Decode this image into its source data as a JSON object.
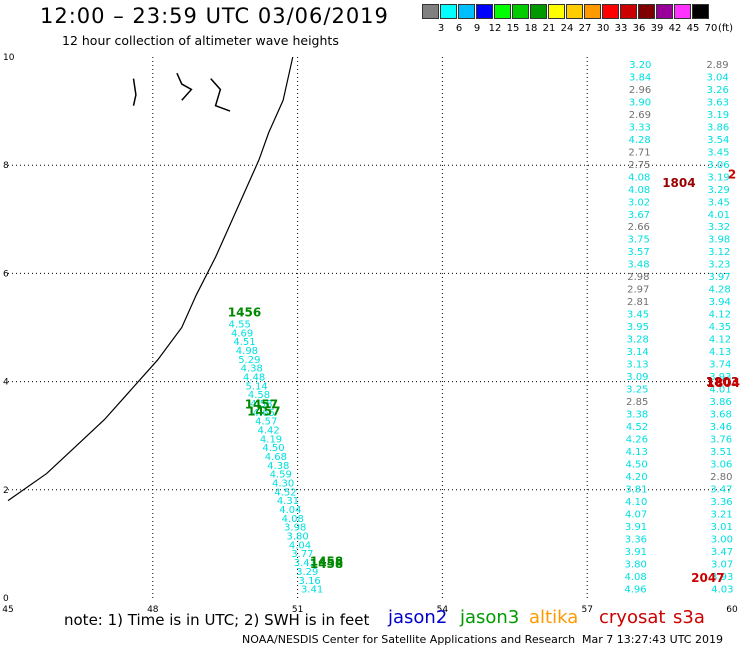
{
  "header": {
    "title": "12:00 – 23:59 UTC 03/06/2019",
    "subtitle": "12 hour collection of altimeter wave heights"
  },
  "legend": {
    "labels": [
      "3",
      "6",
      "9",
      "12",
      "15",
      "18",
      "21",
      "24",
      "27",
      "30",
      "33",
      "36",
      "39",
      "42",
      "45",
      "70"
    ],
    "unit": "(ft)",
    "colors": [
      "#808080",
      "#00ffff",
      "#00bfff",
      "#0000ff",
      "#00ff00",
      "#00cc00",
      "#009900",
      "#ffff00",
      "#ffcc00",
      "#ff9900",
      "#ff0000",
      "#cc0000",
      "#800000",
      "#990099",
      "#ff33ff",
      "#000000"
    ]
  },
  "footer": {
    "note": "note:  1) Time is in UTC;  2) SWH is in feet",
    "satellites": [
      {
        "name": "jason2",
        "color": "#0000cc"
      },
      {
        "name": "jason3",
        "color": "#009900"
      },
      {
        "name": "altika",
        "color": "#ff9900"
      },
      {
        "name": "cryosat",
        "color": "#cc0000"
      },
      {
        "name": "s3a",
        "color": "#cc0000"
      }
    ],
    "credit": "NOAA/NESDIS Center for Satellite Applications and Research",
    "timestamp": "Mar  7 13:27:43 UTC 2019"
  },
  "chart_data": {
    "type": "scatter",
    "xlim": [
      45,
      60
    ],
    "ylim": [
      0,
      10
    ],
    "x_ticks": [
      45,
      48,
      51,
      54,
      57,
      60
    ],
    "y_ticks": [
      0,
      2,
      4,
      6,
      8,
      10
    ],
    "grid": true,
    "coastline": [
      [
        50.9,
        10
      ],
      [
        50.8,
        9.6
      ],
      [
        50.7,
        9.2
      ],
      [
        50.4,
        8.6
      ],
      [
        50.2,
        8.1
      ],
      [
        49.9,
        7.5
      ],
      [
        49.6,
        6.9
      ],
      [
        49.3,
        6.3
      ],
      [
        48.9,
        5.6
      ],
      [
        48.6,
        5.0
      ],
      [
        48.1,
        4.4
      ],
      [
        47.6,
        3.9
      ],
      [
        47.0,
        3.3
      ],
      [
        46.4,
        2.8
      ],
      [
        45.8,
        2.3
      ],
      [
        45.0,
        1.8
      ]
    ],
    "islands": [
      [
        [
          47.6,
          9.6
        ],
        [
          47.65,
          9.3
        ],
        [
          47.6,
          9.1
        ]
      ],
      [
        [
          48.5,
          9.7
        ],
        [
          48.6,
          9.5
        ],
        [
          48.8,
          9.4
        ],
        [
          48.6,
          9.2
        ]
      ],
      [
        [
          49.2,
          9.6
        ],
        [
          49.4,
          9.4
        ],
        [
          49.3,
          9.1
        ],
        [
          49.6,
          9.0
        ]
      ]
    ],
    "text_color_map": {
      "g": "#707070",
      "c": "#00e0e0",
      "dg": "#008800",
      "dr": "#990000",
      "r": "#cc0000"
    },
    "track_labels": [
      {
        "lon": 49.9,
        "lat": 5.2,
        "text": "1456",
        "color": "dg"
      },
      {
        "lon": 50.25,
        "lat": 3.5,
        "text": "1457",
        "color": "dg"
      },
      {
        "lon": 50.3,
        "lat": 3.37,
        "text": "1457",
        "color": "dg"
      },
      {
        "lon": 51.6,
        "lat": 0.6,
        "text": "1458",
        "color": "dg"
      },
      {
        "lon": 51.6,
        "lat": 0.55,
        "text": "1458",
        "color": "dg"
      },
      {
        "lon": 58.9,
        "lat": 7.6,
        "text": "1804",
        "color": "dr"
      },
      {
        "lon": 60.0,
        "lat": 7.75,
        "text": "2",
        "color": "r"
      },
      {
        "lon": 59.8,
        "lat": 3.92,
        "text": "1803",
        "color": "dr"
      },
      {
        "lon": 59.82,
        "lat": 3.9,
        "text": "1804",
        "color": "r"
      },
      {
        "lon": 59.5,
        "lat": 0.3,
        "text": "2047",
        "color": "r"
      }
    ],
    "tracks": [
      {
        "lon0": 49.8,
        "lat0": 5.0,
        "lon1": 51.3,
        "lat1": 0.1,
        "color": "c",
        "values": [
          "4.55",
          "4.69",
          "4.51",
          "4.98",
          "5.29",
          "4.38",
          "4.48",
          "5.14",
          "4.58",
          "4.58",
          "4.65",
          "4.57",
          "4.42",
          "4.19",
          "4.50",
          "4.68",
          "4.38",
          "4.59",
          "4.30",
          "4.52",
          "4.31",
          "4.04",
          "4.08",
          "3.98",
          "3.80",
          "4.04",
          "3.77",
          "3.43",
          "3.29",
          "3.16",
          "3.41"
        ]
      },
      {
        "lon0": 58.1,
        "lat0": 9.8,
        "lon1": 58.0,
        "lat1": 0.1,
        "color": "c",
        "values": [
          "3.20",
          "3.84",
          "2.96",
          "3.90",
          "2.69",
          "3.33",
          "4.28",
          "2.71",
          "2.75",
          "4.08",
          "4.08",
          "3.02",
          "3.67",
          "2.66",
          "3.75",
          "3.57",
          "3.48",
          "2.98",
          "2.97",
          "2.81",
          "3.45",
          "3.95",
          "3.28",
          "3.14",
          "3.13",
          "3.09",
          "3.25",
          "2.85",
          "3.38",
          "4.52",
          "4.26",
          "4.13",
          "4.50",
          "4.20",
          "3.81",
          "4.10",
          "4.07",
          "3.91",
          "3.36",
          "3.91",
          "3.80",
          "4.08",
          "4.96"
        ]
      },
      {
        "lon0": 59.7,
        "lat0": 9.8,
        "lon1": 59.8,
        "lat1": 0.1,
        "color": "c",
        "values": [
          "2.89",
          "3.04",
          "3.26",
          "3.63",
          "3.19",
          "3.86",
          "3.54",
          "3.45",
          "3.06",
          "3.19",
          "3.29",
          "3.45",
          "4.01",
          "3.32",
          "3.98",
          "3.12",
          "3.23",
          "3.97",
          "4.28",
          "3.94",
          "4.12",
          "4.35",
          "4.12",
          "4.13",
          "3.74",
          "3.93",
          "4.01",
          "3.86",
          "3.68",
          "3.46",
          "3.76",
          "3.51",
          "3.06",
          "2.80",
          "3.47",
          "3.36",
          "3.21",
          "3.01",
          "3.00",
          "3.47",
          "3.07",
          "3.93",
          "4.03"
        ]
      }
    ],
    "gray_values": [
      "2.96",
      "2.69",
      "2.71",
      "2.75",
      "2.66",
      "2.98",
      "2.97",
      "2.81",
      "2.85",
      "2.89",
      "2.80"
    ]
  }
}
